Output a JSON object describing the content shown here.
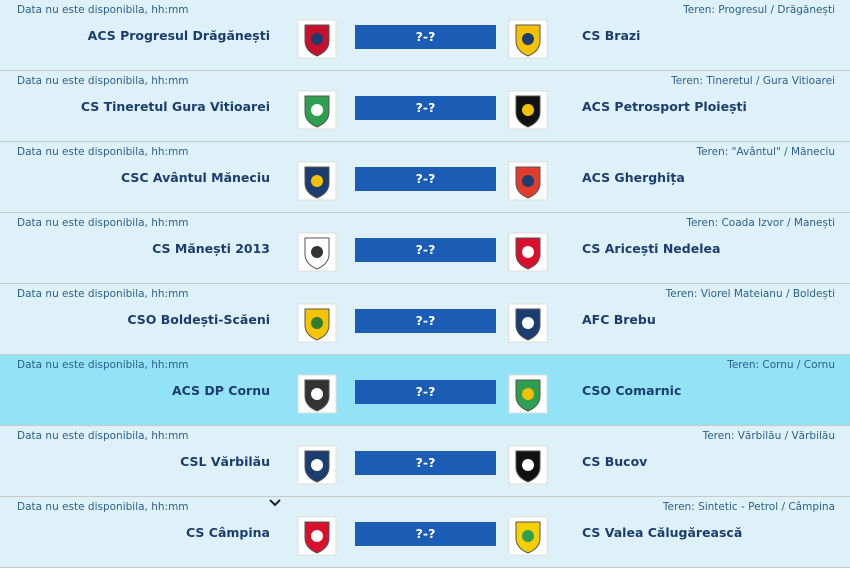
{
  "matches": [
    {
      "date": "Data nu este disponibila, hh:mm",
      "venue": "Teren: Progresul / Drăgănești",
      "home": "ACS Progresul Drăgănești",
      "score": "?-?",
      "away": "CS Brazi"
    },
    {
      "date": "Data nu este disponibila, hh:mm",
      "venue": "Teren: Tineretul / Gura Vitioarei",
      "home": "CS Tineretul Gura Vitioarei",
      "score": "?-?",
      "away": "ACS Petrosport Ploiești"
    },
    {
      "date": "Data nu este disponibila, hh:mm",
      "venue": "Teren: \"Avântul\" / Măneciu",
      "home": "CSC Avântul Măneciu",
      "score": "?-?",
      "away": "ACS Gherghița"
    },
    {
      "date": "Data nu este disponibila, hh:mm",
      "venue": "Teren: Coada Izvor / Manești",
      "home": "CS Mănești 2013",
      "score": "?-?",
      "away": "CS Aricești Nedelea"
    },
    {
      "date": "Data nu este disponibila, hh:mm",
      "venue": "Teren: Viorel Mateianu / Boldești",
      "home": "CSO Boldești-Scăeni",
      "score": "?-?",
      "away": "AFC Brebu"
    },
    {
      "date": "Data nu este disponibila, hh:mm",
      "venue": "Teren: Cornu / Cornu",
      "home": "ACS DP Cornu",
      "score": "?-?",
      "away": "CSO Comarnic"
    },
    {
      "date": "Data nu este disponibila, hh:mm",
      "venue": "Teren: Vărbilău / Vărbilău",
      "home": "CSL Vărbilău",
      "score": "?-?",
      "away": "CS Bucov"
    },
    {
      "date": "Data nu este disponibila, hh:mm",
      "venue": "Teren: Sintetic - Petrol / Câmpina",
      "home": "CS Câmpina",
      "score": "?-?",
      "away": "CS Valea Călugărească"
    }
  ]
}
